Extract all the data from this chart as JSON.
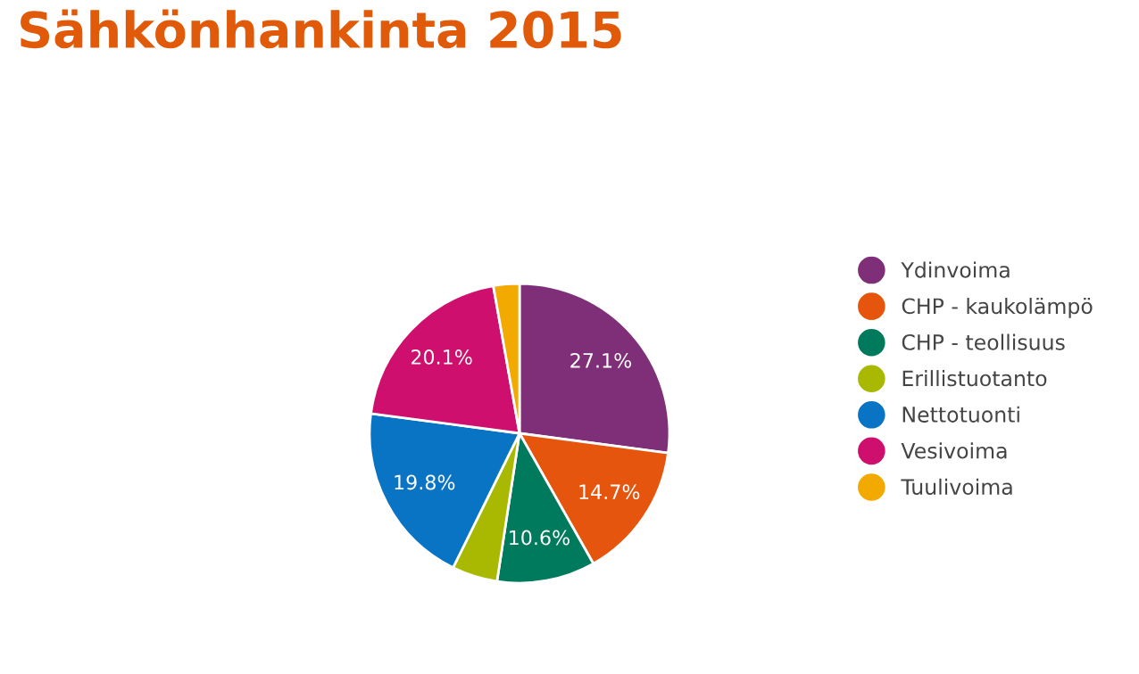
{
  "chart_data": {
    "type": "pie",
    "title": "Sähkönhankinta 2015",
    "categories": [
      "Ydinvoima",
      "CHP - kaukolämpö",
      "CHP - teollisuus",
      "Erillistuotanto",
      "Nettotuonti",
      "Vesivoima",
      "Tuulivoima"
    ],
    "values": [
      27.1,
      14.7,
      10.6,
      4.9,
      19.8,
      20.1,
      2.8
    ],
    "value_labels": [
      "27.1%",
      "14.7%",
      "10.6%",
      null,
      "19.8%",
      "20.1%",
      null
    ],
    "colors": [
      "#7e2f78",
      "#e6550d",
      "#007a5c",
      "#a9b800",
      "#0a74c4",
      "#cf0f6d",
      "#f2a900"
    ],
    "legend": "right"
  }
}
